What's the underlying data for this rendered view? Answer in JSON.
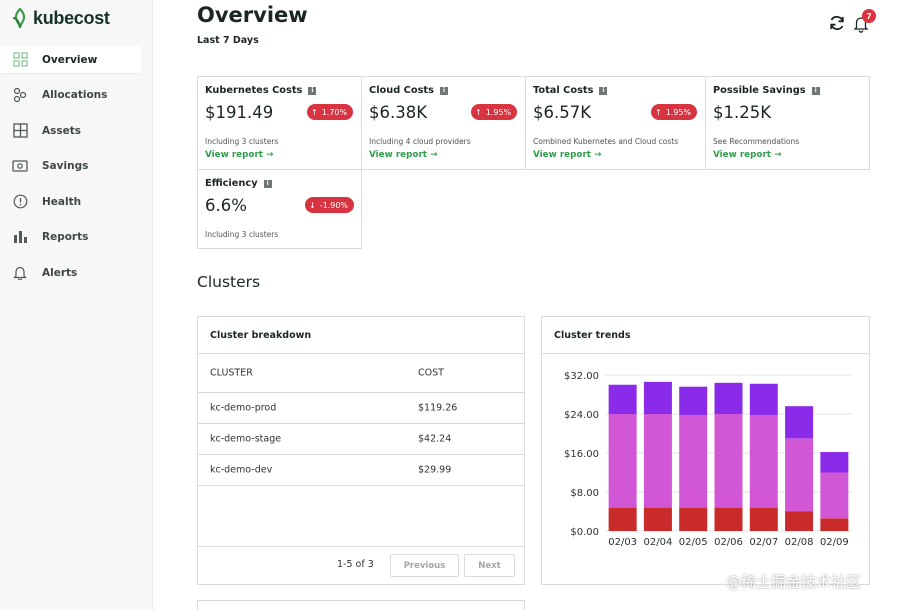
{
  "brand": {
    "name": "kubecost",
    "color": "#2f9d4a"
  },
  "sidebar": {
    "items": [
      {
        "label": "Overview",
        "icon": "grid-icon",
        "active": true
      },
      {
        "label": "Allocations",
        "icon": "allocations-icon"
      },
      {
        "label": "Assets",
        "icon": "assets-icon"
      },
      {
        "label": "Savings",
        "icon": "savings-icon"
      },
      {
        "label": "Health",
        "icon": "health-icon"
      },
      {
        "label": "Reports",
        "icon": "reports-icon"
      },
      {
        "label": "Alerts",
        "icon": "bell-icon"
      }
    ]
  },
  "header": {
    "title": "Overview",
    "subtitle": "Last 7 Days",
    "notifications_count": "7"
  },
  "metrics": [
    {
      "title": "Kubernetes Costs",
      "value": "$191.49",
      "delta": "1.70%",
      "direction": "up",
      "note": "Including 3 clusters",
      "link": "View report"
    },
    {
      "title": "Cloud Costs",
      "value": "$6.38K",
      "delta": "1.95%",
      "direction": "up",
      "note": "Including 4 cloud providers",
      "link": "View report"
    },
    {
      "title": "Total Costs",
      "value": "$6.57K",
      "delta": "1.95%",
      "direction": "up",
      "note": "Combined Kubernetes and Cloud costs",
      "link": "View report"
    },
    {
      "title": "Possible Savings",
      "value": "$1.25K",
      "note": "See Recommendations",
      "link": "View report"
    },
    {
      "title": "Efficiency",
      "value": "6.6%",
      "delta": "-1.90%",
      "direction": "down",
      "note": "Including 3 clusters"
    }
  ],
  "clusters": {
    "title": "Clusters",
    "breakdown": {
      "title": "Cluster breakdown",
      "columns": [
        "CLUSTER",
        "COST"
      ],
      "rows": [
        {
          "cluster": "kc-demo-prod",
          "cost": "$119.26"
        },
        {
          "cluster": "kc-demo-stage",
          "cost": "$42.24"
        },
        {
          "cluster": "kc-demo-dev",
          "cost": "$29.99"
        }
      ],
      "pagination": {
        "text": "1-5 of 3",
        "previous": "Previous",
        "next": "Next"
      }
    },
    "trends": {
      "title": "Cluster trends"
    }
  },
  "chart_data": {
    "type": "bar",
    "stacked": true,
    "title": "Cluster trends",
    "categories": [
      "02/03",
      "02/04",
      "02/05",
      "02/06",
      "02/07",
      "02/08",
      "02/09"
    ],
    "series": [
      {
        "name": "kc-demo-dev",
        "color": "#c92a2a",
        "values": [
          4.8,
          4.8,
          4.8,
          4.8,
          4.8,
          4.0,
          2.6
        ]
      },
      {
        "name": "kc-demo-prod",
        "color": "#d157d6",
        "values": [
          19.2,
          19.2,
          19.0,
          19.2,
          19.0,
          15.0,
          9.4
        ]
      },
      {
        "name": "kc-demo-stage",
        "color": "#8a2bea",
        "values": [
          6.0,
          6.6,
          5.8,
          6.4,
          6.4,
          6.6,
          4.2
        ]
      }
    ],
    "y_ticks": [
      "$0.00",
      "$8.00",
      "$16.00",
      "$24.00",
      "$32.00"
    ],
    "ylim": [
      0,
      32
    ],
    "grid": true
  },
  "watermark": "@稀土掘金技术社区"
}
